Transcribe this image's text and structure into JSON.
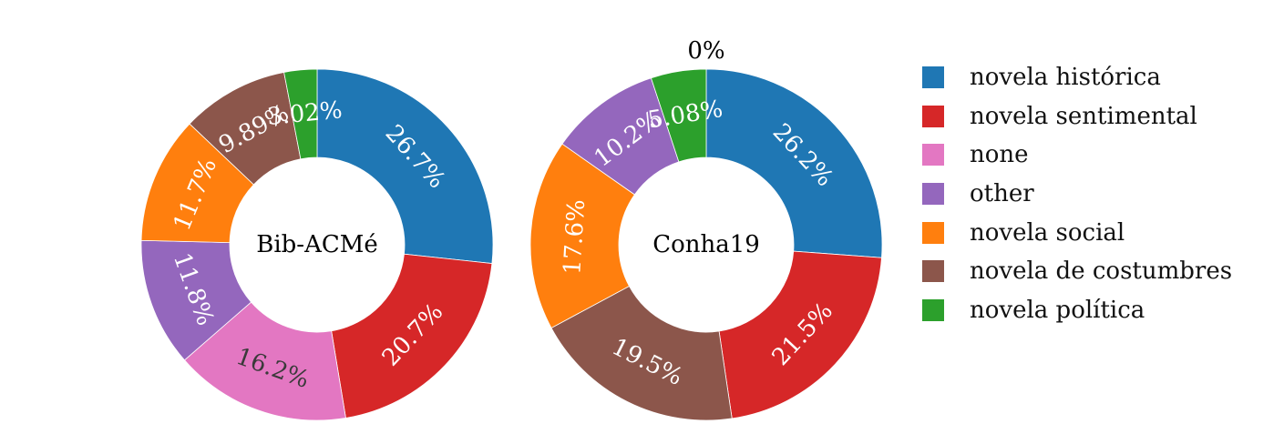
{
  "chart_data": [
    {
      "type": "donut",
      "center_label": "Bib-ACMé",
      "slices": [
        {
          "category": "novela histórica",
          "value": 26.7,
          "label": "26.7%"
        },
        {
          "category": "novela sentimental",
          "value": 20.7,
          "label": "20.7%"
        },
        {
          "category": "none",
          "value": 16.2,
          "label": "16.2%"
        },
        {
          "category": "other",
          "value": 11.8,
          "label": "11.8%"
        },
        {
          "category": "novela social",
          "value": 11.7,
          "label": "11.7%"
        },
        {
          "category": "novela de costumbres",
          "value": 9.89,
          "label": "9.89%"
        },
        {
          "category": "novela política",
          "value": 3.02,
          "label": "3.02%"
        }
      ]
    },
    {
      "type": "donut",
      "center_label": "Conha19",
      "slices": [
        {
          "category": "novela histórica",
          "value": 26.2,
          "label": "26.2%"
        },
        {
          "category": "novela sentimental",
          "value": 21.5,
          "label": "21.5%"
        },
        {
          "category": "novela de costumbres",
          "value": 19.5,
          "label": "19.5%"
        },
        {
          "category": "novela social",
          "value": 17.6,
          "label": "17.6%"
        },
        {
          "category": "other",
          "value": 10.2,
          "label": "10.2%"
        },
        {
          "category": "novela política",
          "value": 5.08,
          "label": "5.08%"
        },
        {
          "category": "none",
          "value": 0,
          "label": "0%"
        }
      ]
    }
  ],
  "legend": {
    "placement": "right",
    "items": [
      {
        "label": "novela histórica",
        "color": "#1f77b4"
      },
      {
        "label": "novela sentimental",
        "color": "#d62728"
      },
      {
        "label": "none",
        "color": "#e377c2"
      },
      {
        "label": "other",
        "color": "#9467bd"
      },
      {
        "label": "novela social",
        "color": "#ff7f0e"
      },
      {
        "label": "novela de costumbres",
        "color": "#8c564b"
      },
      {
        "label": "novela política",
        "color": "#2ca02c"
      }
    ]
  }
}
